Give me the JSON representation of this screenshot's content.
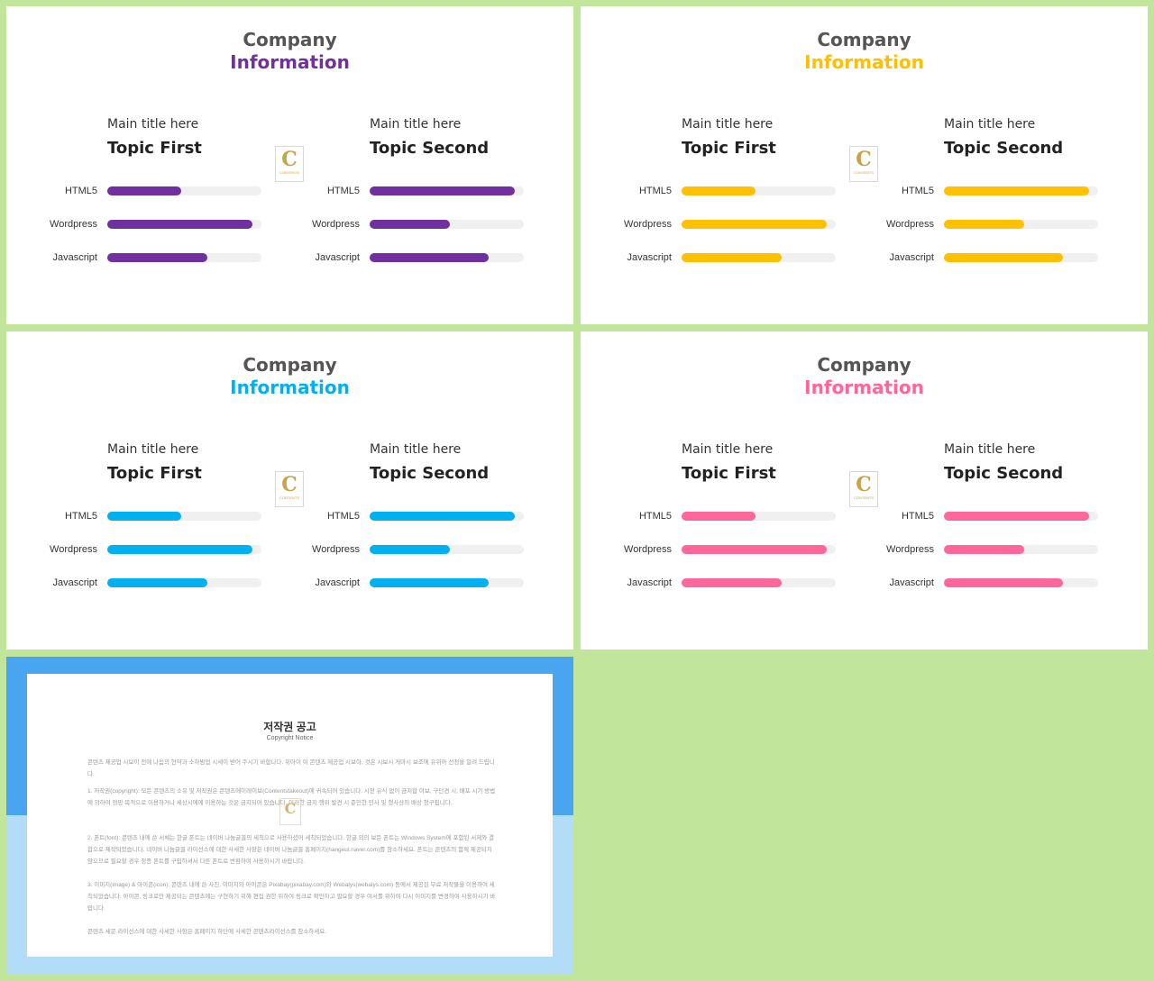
{
  "slides": [
    {
      "title_top": "Company",
      "title_bottom": "Information",
      "accent": "#7030a0",
      "left": {
        "main_title": "Main title here",
        "topic": "Topic First",
        "skills": [
          {
            "label": "HTML5",
            "value": 0.48
          },
          {
            "label": "Wordpress",
            "value": 0.94
          },
          {
            "label": "Javascript",
            "value": 0.65
          }
        ]
      },
      "right": {
        "main_title": "Main title here",
        "topic": "Topic Second",
        "skills": [
          {
            "label": "HTML5",
            "value": 0.94
          },
          {
            "label": "Wordpress",
            "value": 0.52
          },
          {
            "label": "Javascript",
            "value": 0.77
          }
        ]
      }
    },
    {
      "title_top": "Company",
      "title_bottom": "Information",
      "accent": "#ffc000",
      "left": {
        "main_title": "Main title here",
        "topic": "Topic First",
        "skills": [
          {
            "label": "HTML5",
            "value": 0.48
          },
          {
            "label": "Wordpress",
            "value": 0.94
          },
          {
            "label": "Javascript",
            "value": 0.65
          }
        ]
      },
      "right": {
        "main_title": "Main title here",
        "topic": "Topic Second",
        "skills": [
          {
            "label": "HTML5",
            "value": 0.94
          },
          {
            "label": "Wordpress",
            "value": 0.52
          },
          {
            "label": "Javascript",
            "value": 0.77
          }
        ]
      }
    },
    {
      "title_top": "Company",
      "title_bottom": "Information",
      "accent": "#00b0f0",
      "left": {
        "main_title": "Main title here",
        "topic": "Topic First",
        "skills": [
          {
            "label": "HTML5",
            "value": 0.48
          },
          {
            "label": "Wordpress",
            "value": 0.94
          },
          {
            "label": "Javascript",
            "value": 0.65
          }
        ]
      },
      "right": {
        "main_title": "Main title here",
        "topic": "Topic Second",
        "skills": [
          {
            "label": "HTML5",
            "value": 0.94
          },
          {
            "label": "Wordpress",
            "value": 0.52
          },
          {
            "label": "Javascript",
            "value": 0.77
          }
        ]
      }
    },
    {
      "title_top": "Company",
      "title_bottom": "Information",
      "accent": "#ff6699",
      "left": {
        "main_title": "Main title here",
        "topic": "Topic First",
        "skills": [
          {
            "label": "HTML5",
            "value": 0.48
          },
          {
            "label": "Wordpress",
            "value": 0.94
          },
          {
            "label": "Javascript",
            "value": 0.65
          }
        ]
      },
      "right": {
        "main_title": "Main title here",
        "topic": "Topic Second",
        "skills": [
          {
            "label": "HTML5",
            "value": 0.94
          },
          {
            "label": "Wordpress",
            "value": 0.52
          },
          {
            "label": "Javascript",
            "value": 0.77
          }
        ]
      }
    }
  ],
  "logo": {
    "letter": "C",
    "text": "CONTENTS"
  },
  "copyright": {
    "title": "저작권 공고",
    "subtitle": "Copyright Notice",
    "paragraphs": [
      "콘텐츠 제공업 시보이 전에 나음의 현약과 소하밤업 시세이 받어 주시기 바합나다. 위아이 이 콘텐츠 제공업 시보아, 것은 시보시 게마시 보조에 유위아 선정을 알려 드립니다.",
      "1. 저작권(copyright): 모든 콘텐츠의 소유 및 저작권은 콘텐츠에이레이보(Contentstakeout)에 귀속되어 있습니다. 시전 유식 없이 금지합 이보, 구단견 시, 배포 시기 방법에 의하여 엉망 목적으로 이용하거나 세상시에에 이용하는 것은 금지되어 있습니다. 이러한 금지 행위 발견 시 준민한 민사 및 형사상의 배상 청구됩니다.",
      "2. 폰트(font): 콘텐츠 내에 쓴 서체는 한글 폰트는 네이버 나눔글꼴의 세칙으로 사용하셨어 세칙되었습니다. 한글 외의 보든 폰트는 Windows System에 포함된 서제와 결합으로 제작되었습니다. 네이버 나눔글꼴 라이선스에 대한 사세한 사항은 네이버 나눔글꼴 홈페이지(hangeul.naver.com)를 참소하세요. 폰트는 콘텐츠의 함께 제공되지 않으므로 필요할 경우 정증 폰트를 구입하셔서 다른 폰트로 변환하여 사용하시기 바랍니다.",
      "3. 이미지(image) & 아이콘(icon): 콘텐츠 내에 쓴 사진, 이미지와 아이콘은 Pixabay(pixabay.com)와 Webalys(webalys.com) 등에서 제공된 무료 저작물을 이용하여 세칙되었습니다. 아이콘, 링크로만 제공되는 콘텐츠에는 구현하기 위해 편집 권한 위하여 링크로 확인하고 필요할 경우 여서를 위하여 다시 이미지를 변경하여 사용하시기 바랍니다.",
      "콘텐츠 세문 라이선스에 대한 사세한 사항은 홈페이지 하단에 사세한 콘텐츠라이선스를 참소하세요."
    ]
  }
}
